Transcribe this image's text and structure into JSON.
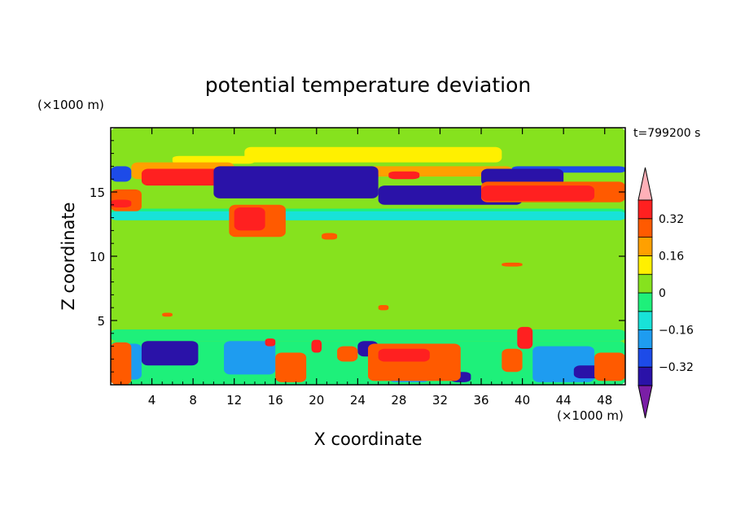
{
  "chart_data": {
    "type": "heatmap",
    "title": "potential temperature deviation",
    "xlabel": "X coordinate",
    "ylabel": "Z coordinate",
    "x_unit": "(×1000 m)",
    "y_unit": "(×1000 m)",
    "time_label": "t=799200 s",
    "xlim": [
      0,
      50
    ],
    "ylim": [
      0,
      20
    ],
    "x_ticks": [
      4,
      8,
      12,
      16,
      20,
      24,
      28,
      32,
      36,
      40,
      44,
      48
    ],
    "y_ticks": [
      5,
      10,
      15
    ],
    "colorbar": {
      "levels": [
        -0.4,
        -0.32,
        -0.24,
        -0.16,
        -0.08,
        0,
        0.08,
        0.16,
        0.24,
        0.32,
        0.4
      ],
      "labels": [
        {
          "text": "0.32",
          "value": 0.32
        },
        {
          "text": "0.16",
          "value": 0.16
        },
        {
          "text": "0",
          "value": 0
        },
        {
          "text": "−0.16",
          "value": -0.16
        },
        {
          "text": "−0.32",
          "value": -0.32
        }
      ],
      "colors": [
        "#7a1ea6",
        "#2a12a8",
        "#1d4be8",
        "#1e9cf0",
        "#18e2d8",
        "#1ef07a",
        "#86e21e",
        "#fff000",
        "#ffa000",
        "#ff5a00",
        "#ff2020",
        "#ffb0b8"
      ]
    },
    "grid": false,
    "field_layers": [
      {
        "value": 0.0,
        "rects": [
          [
            0,
            0,
            50,
            20
          ]
        ]
      },
      {
        "value": 0.05,
        "rects": [
          [
            0,
            16.3,
            50,
            18.5
          ],
          [
            4,
            4,
            46,
            12
          ]
        ]
      },
      {
        "value": 0.05,
        "rects": [
          [
            0,
            11.5,
            50,
            12.8
          ]
        ]
      },
      {
        "value": -0.05,
        "rects": [
          [
            0,
            12.8,
            50,
            13.7
          ],
          [
            0,
            3.4,
            50,
            4.3
          ]
        ]
      },
      {
        "value": 0.12,
        "rects": [
          [
            13,
            17.3,
            38,
            18.5
          ],
          [
            6,
            17.2,
            14,
            17.8
          ]
        ]
      },
      {
        "value": 0.2,
        "rects": [
          [
            2,
            16.0,
            12,
            17.3
          ],
          [
            18,
            16.2,
            39,
            17.0
          ]
        ]
      },
      {
        "value": 0.38,
        "rects": [
          [
            3,
            15.5,
            11,
            16.8
          ],
          [
            24,
            16.0,
            26,
            16.5
          ],
          [
            27,
            16.0,
            30,
            16.6
          ]
        ]
      },
      {
        "value": -0.3,
        "rects": [
          [
            0,
            15.8,
            2,
            17.0
          ],
          [
            39,
            16.5,
            50,
            17.0
          ]
        ]
      },
      {
        "value": -0.38,
        "rects": [
          [
            10,
            14.5,
            26,
            17.0
          ],
          [
            26,
            14.0,
            40,
            15.5
          ],
          [
            36,
            15.5,
            44,
            16.8
          ]
        ]
      },
      {
        "value": 0.28,
        "rects": [
          [
            36,
            14.2,
            50,
            15.8
          ],
          [
            0,
            13.5,
            3,
            15.2
          ]
        ]
      },
      {
        "value": 0.38,
        "rects": [
          [
            36,
            14.3,
            47,
            15.5
          ],
          [
            0,
            13.8,
            2,
            14.4
          ]
        ]
      },
      {
        "value": -0.16,
        "rects": [
          [
            0,
            12.8,
            50,
            13.5
          ]
        ]
      },
      {
        "value": 0.3,
        "rects": [
          [
            11.5,
            11.5,
            17,
            14.0
          ]
        ]
      },
      {
        "value": 0.38,
        "rects": [
          [
            12,
            12.0,
            15,
            13.8
          ]
        ]
      },
      {
        "value": 0.3,
        "rects": [
          [
            20.5,
            11.3,
            22,
            11.8
          ],
          [
            38,
            9.2,
            40,
            9.5
          ],
          [
            5,
            5.3,
            6,
            5.6
          ],
          [
            26,
            5.8,
            27,
            6.2
          ]
        ]
      },
      {
        "value": -0.08,
        "rects": [
          [
            0,
            0,
            50,
            3.4
          ]
        ]
      },
      {
        "value": -0.24,
        "rects": [
          [
            0,
            0.4,
            3,
            3.2
          ],
          [
            11,
            0.8,
            16,
            3.4
          ],
          [
            27,
            0.2,
            31,
            1.4
          ],
          [
            41,
            0.2,
            47,
            3.0
          ]
        ]
      },
      {
        "value": -0.38,
        "rects": [
          [
            3,
            1.5,
            8.5,
            3.4
          ],
          [
            24,
            2.2,
            26,
            3.4
          ],
          [
            33,
            0.2,
            35,
            1.0
          ],
          [
            45,
            0.5,
            48,
            1.5
          ]
        ]
      },
      {
        "value": 0.3,
        "rects": [
          [
            0,
            0,
            2,
            3.3
          ],
          [
            16,
            0.2,
            19,
            2.5
          ],
          [
            22,
            1.8,
            24,
            3.0
          ],
          [
            25,
            0.3,
            34,
            3.2
          ],
          [
            38,
            1.0,
            40,
            2.8
          ],
          [
            47,
            0.3,
            50,
            2.5
          ]
        ]
      },
      {
        "value": 0.38,
        "rects": [
          [
            26,
            1.8,
            31,
            2.8
          ],
          [
            19.5,
            2.5,
            20.5,
            3.5
          ]
        ]
      },
      {
        "value": 0.38,
        "rects": [
          [
            39.5,
            2.8,
            41,
            4.5
          ],
          [
            15,
            3.0,
            16,
            3.6
          ]
        ]
      }
    ]
  }
}
